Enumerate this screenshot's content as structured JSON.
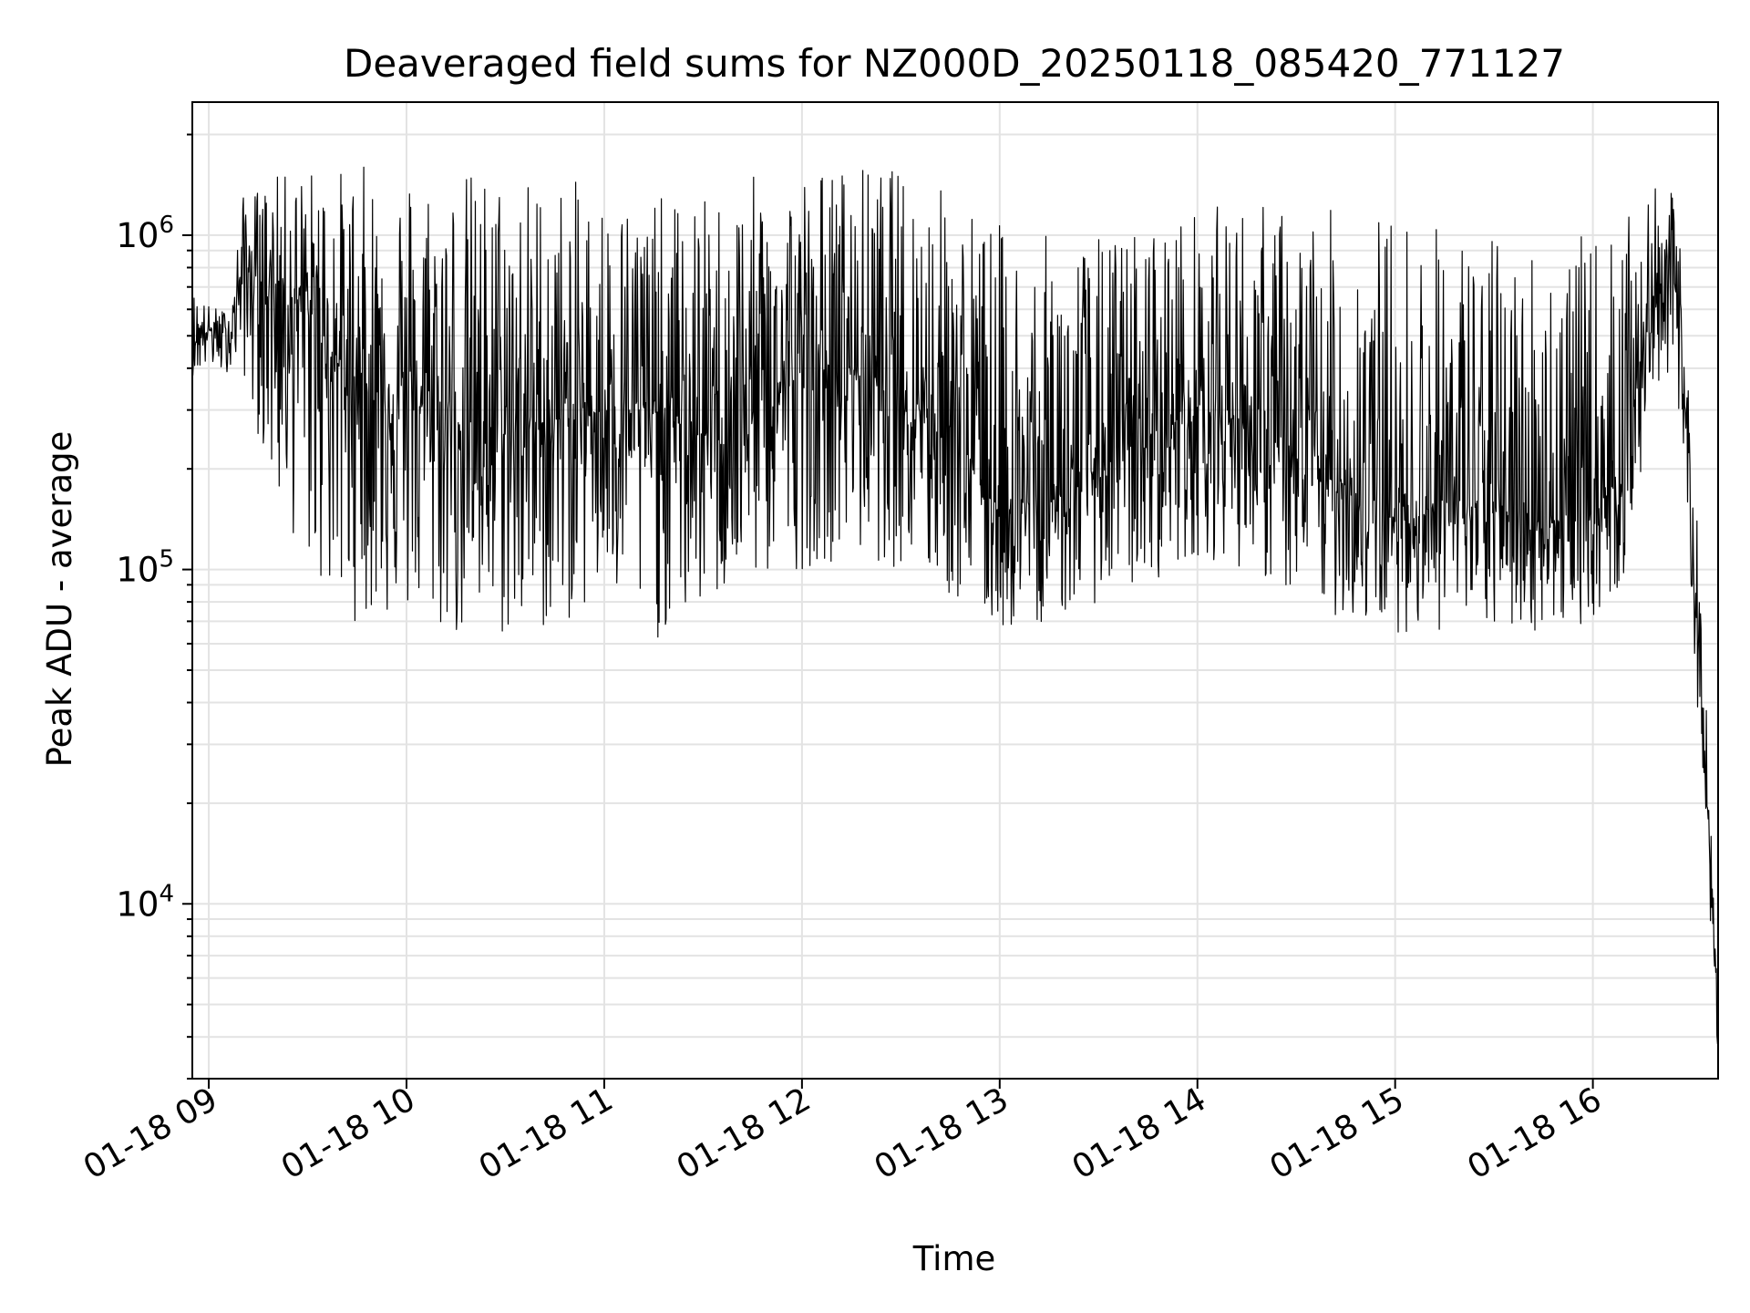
{
  "chart_data": {
    "type": "line",
    "title": "Deaveraged field sums for NZ000D_20250118_085420_771127",
    "xlabel": "Time",
    "ylabel": "Peak ADU - average",
    "yscale": "log",
    "xlim": [
      "2025-01-18 08:55",
      "2025-01-18 16:38"
    ],
    "ylim": [
      3000,
      2500000
    ],
    "x_tick_labels": [
      "01-18 09",
      "01-18 10",
      "01-18 11",
      "01-18 12",
      "01-18 13",
      "01-18 14",
      "01-18 15",
      "01-18 16"
    ],
    "y_tick_labels": [
      {
        "base": "10",
        "exp": "4",
        "value": 10000
      },
      {
        "base": "10",
        "exp": "5",
        "value": 100000
      },
      {
        "base": "10",
        "exp": "6",
        "value": 1000000
      }
    ],
    "grid": true,
    "line_color": "#000000",
    "series": [
      {
        "x": [
          "2025-01-18 08:55",
          "2025-01-18 09:00",
          "2025-01-18 09:04",
          "2025-01-18 09:07",
          "2025-01-18 09:10",
          "2025-01-18 09:15",
          "2025-01-18 09:20",
          "2025-01-18 09:30",
          "2025-01-18 09:40",
          "2025-01-18 09:50",
          "2025-01-18 10:00",
          "2025-01-18 10:15",
          "2025-01-18 10:30",
          "2025-01-18 10:45",
          "2025-01-18 11:00",
          "2025-01-18 11:15",
          "2025-01-18 11:30",
          "2025-01-18 11:45",
          "2025-01-18 12:00",
          "2025-01-18 12:15",
          "2025-01-18 12:30",
          "2025-01-18 12:45",
          "2025-01-18 13:00",
          "2025-01-18 13:15",
          "2025-01-18 13:30",
          "2025-01-18 13:45",
          "2025-01-18 14:00",
          "2025-01-18 14:15",
          "2025-01-18 14:30",
          "2025-01-18 14:45",
          "2025-01-18 15:00",
          "2025-01-18 15:15",
          "2025-01-18 15:30",
          "2025-01-18 15:45",
          "2025-01-18 16:00",
          "2025-01-18 16:10",
          "2025-01-18 16:15",
          "2025-01-18 16:20",
          "2025-01-18 16:23",
          "2025-01-18 16:25",
          "2025-01-18 16:28",
          "2025-01-18 16:30",
          "2025-01-18 16:32",
          "2025-01-18 16:34",
          "2025-01-18 16:36",
          "2025-01-18 16:38"
        ],
        "y": [
          480000,
          520000,
          500000,
          520000,
          800000,
          750000,
          700000,
          600000,
          400000,
          350000,
          320000,
          280000,
          260000,
          280000,
          300000,
          300000,
          250000,
          320000,
          380000,
          400000,
          350000,
          280000,
          150000,
          160000,
          200000,
          250000,
          300000,
          280000,
          200000,
          180000,
          140000,
          160000,
          150000,
          140000,
          140000,
          220000,
          450000,
          700000,
          900000,
          700000,
          300000,
          150000,
          50000,
          30000,
          10000,
          4000
        ],
        "lo": [
          380000,
          400000,
          380000,
          400000,
          400000,
          250000,
          160000,
          100000,
          70000,
          70000,
          70000,
          60000,
          60000,
          65000,
          80000,
          60000,
          75000,
          90000,
          100000,
          110000,
          100000,
          80000,
          65000,
          70000,
          80000,
          90000,
          110000,
          100000,
          80000,
          70000,
          65000,
          65000,
          65000,
          65000,
          70000,
          90000,
          200000,
          300000,
          400000,
          300000,
          150000,
          70000,
          35000,
          22000,
          7000,
          3500
        ],
        "hi": [
          700000,
          620000,
          600000,
          640000,
          1300000,
          1400000,
          1500000,
          1600000,
          1600000,
          1650000,
          1650000,
          1600000,
          1600000,
          1500000,
          1400000,
          1300000,
          1300000,
          1500000,
          1600000,
          1650000,
          1600000,
          1400000,
          1100000,
          1000000,
          1000000,
          1100000,
          1200000,
          1300000,
          1200000,
          1200000,
          1200000,
          1100000,
          1000000,
          1000000,
          1000000,
          1100000,
          1300000,
          1400000,
          1450000,
          1200000,
          800000,
          300000,
          120000,
          60000,
          15000,
          6000
        ]
      }
    ]
  }
}
